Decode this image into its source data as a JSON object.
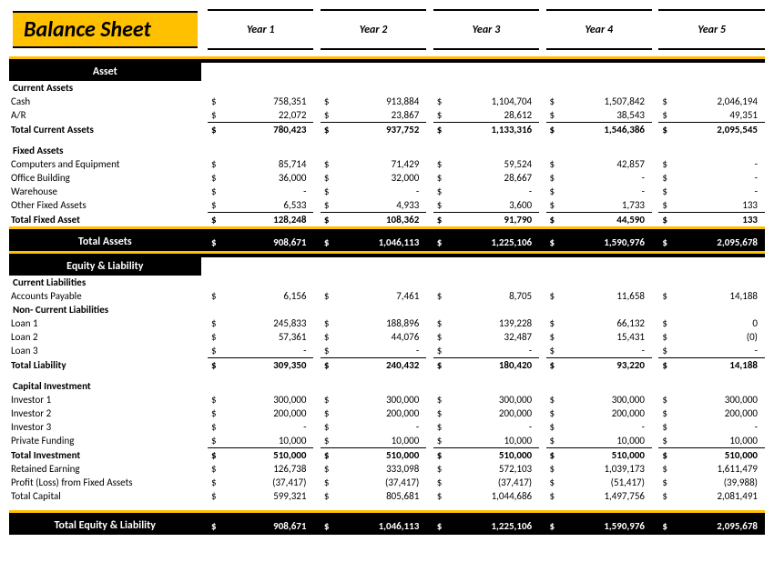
{
  "title": "Balance Sheet",
  "currency_symbol": "$",
  "colors": {
    "accent": "#ffc000",
    "bar": "#000000",
    "text": "#000000",
    "bg": "#ffffff"
  },
  "years": [
    "Year 1",
    "Year 2",
    "Year 3",
    "Year 4",
    "Year 5"
  ],
  "sections": {
    "asset": {
      "label": "Asset",
      "groups": [
        {
          "label": "Current Assets",
          "rows": [
            {
              "label": "Cash",
              "values": [
                "758,351",
                "913,884",
                "1,104,704",
                "1,507,842",
                "2,046,194"
              ]
            },
            {
              "label": "A/R",
              "values": [
                "22,072",
                "23,867",
                "28,612",
                "38,543",
                "49,351"
              ]
            }
          ],
          "total": {
            "label": "Total Current Assets",
            "values": [
              "780,423",
              "937,752",
              "1,133,316",
              "1,546,386",
              "2,095,545"
            ]
          }
        },
        {
          "label": "Fixed Assets",
          "rows": [
            {
              "label": "Computers and Equipment",
              "values": [
                "85,714",
                "71,429",
                "59,524",
                "42,857",
                "-"
              ]
            },
            {
              "label": "Office Building",
              "values": [
                "36,000",
                "32,000",
                "28,667",
                "-",
                "-"
              ]
            },
            {
              "label": "Warehouse",
              "values": [
                "-",
                "-",
                "-",
                "-",
                "-"
              ]
            },
            {
              "label": "Other Fixed Assets",
              "values": [
                "6,533",
                "4,933",
                "3,600",
                "1,733",
                "133"
              ]
            }
          ],
          "total": {
            "label": "Total Fixed Asset",
            "values": [
              "128,248",
              "108,362",
              "91,790",
              "44,590",
              "133"
            ]
          }
        }
      ],
      "grand_total": {
        "label": "Total Assets",
        "values": [
          "908,671",
          "1,046,113",
          "1,225,106",
          "1,590,976",
          "2,095,678"
        ]
      }
    },
    "equity_liability": {
      "label": "Equity & Liability",
      "groups": [
        {
          "label": "Current Liabilities",
          "rows": [
            {
              "label": " Accounts Payable",
              "values": [
                "6,156",
                "7,461",
                "8,705",
                "11,658",
                "14,188"
              ]
            }
          ]
        },
        {
          "label": "Non- Current Liabilities",
          "rows": [
            {
              "label": "Loan 1",
              "values": [
                "245,833",
                "188,896",
                "139,228",
                "66,132",
                "0"
              ]
            },
            {
              "label": "Loan 2",
              "values": [
                "57,361",
                "44,076",
                "32,487",
                "15,431",
                "(0)"
              ]
            },
            {
              "label": "Loan 3",
              "values": [
                "-",
                "-",
                "-",
                "-",
                "-"
              ]
            }
          ],
          "total": {
            "label": "Total Liability",
            "values": [
              "309,350",
              "240,432",
              "180,420",
              "93,220",
              "14,188"
            ]
          }
        },
        {
          "label": "Capital Investment",
          "rows": [
            {
              "label": "Investor 1",
              "values": [
                "300,000",
                "300,000",
                "300,000",
                "300,000",
                "300,000"
              ]
            },
            {
              "label": "Investor 2",
              "values": [
                "200,000",
                "200,000",
                "200,000",
                "200,000",
                "200,000"
              ]
            },
            {
              "label": "Investor 3",
              "values": [
                "-",
                "-",
                "-",
                "-",
                "-"
              ]
            },
            {
              "label": "Private Funding",
              "values": [
                "10,000",
                "10,000",
                "10,000",
                "10,000",
                "10,000"
              ]
            }
          ],
          "total": {
            "label": "Total Investment",
            "values": [
              "510,000",
              "510,000",
              "510,000",
              "510,000",
              "510,000"
            ]
          },
          "extra_rows": [
            {
              "label": "Retained Earning",
              "values": [
                "126,738",
                "333,098",
                "572,103",
                "1,039,173",
                "1,611,479"
              ]
            },
            {
              "label": "Profit (Loss) from Fixed Assets",
              "values": [
                "(37,417)",
                "(37,417)",
                "(37,417)",
                "(51,417)",
                "(39,988)"
              ]
            },
            {
              "label": "Total Capital",
              "values": [
                "599,321",
                "805,681",
                "1,044,686",
                "1,497,756",
                "2,081,491"
              ]
            }
          ]
        }
      ],
      "grand_total": {
        "label": "Total Equity & Liability",
        "values": [
          "908,671",
          "1,046,113",
          "1,225,106",
          "1,590,976",
          "2,095,678"
        ]
      }
    }
  }
}
